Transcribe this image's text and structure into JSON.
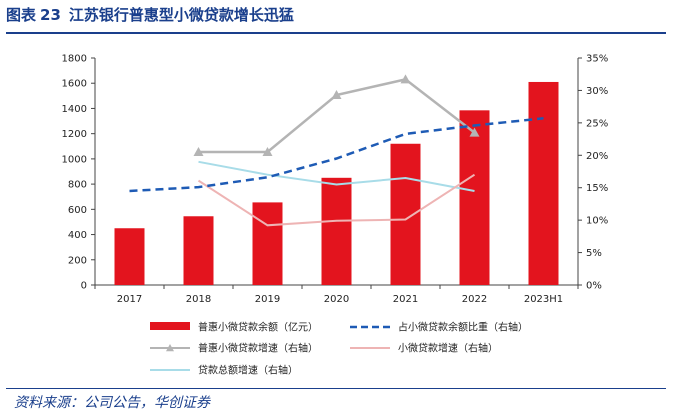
{
  "header": {
    "figure_label": "图表",
    "figure_number": "23",
    "title": "江苏银行普惠型小微贷款增长迅猛"
  },
  "footer": {
    "source": "资料来源：公司公告，华创证券"
  },
  "chart_data": {
    "type": "bar",
    "title": "江苏银行普惠型小微贷款增长迅猛",
    "categories": [
      "2017",
      "2018",
      "2019",
      "2020",
      "2021",
      "2022",
      "2023H1"
    ],
    "y_left": {
      "min": 0,
      "max": 1800,
      "step": 200,
      "ticks": [
        "0",
        "200",
        "400",
        "600",
        "800",
        "1000",
        "1200",
        "1400",
        "1600",
        "1800"
      ]
    },
    "y_right": {
      "min": 0,
      "max": 35,
      "step": 5,
      "ticks": [
        "0%",
        "5%",
        "10%",
        "15%",
        "20%",
        "25%",
        "30%",
        "35%"
      ]
    },
    "series": [
      {
        "name": "普惠小微贷款余额（亿元）",
        "type": "bar",
        "axis": "left",
        "color": "#e3141e",
        "values": [
          450,
          545,
          655,
          850,
          1120,
          1385,
          1610
        ]
      },
      {
        "name": "占小微贷款余额比重（右轴）",
        "type": "line",
        "style": "dashed",
        "axis": "right",
        "color": "#1e5bb5",
        "values": [
          14.5,
          15.1,
          16.6,
          19.5,
          23.3,
          24.6,
          25.7
        ]
      },
      {
        "name": "普惠小微贷款增速（右轴）",
        "type": "line",
        "style": "solid-marker",
        "axis": "right",
        "color": "#b4b4b4",
        "values": [
          null,
          20.5,
          20.5,
          29.3,
          31.7,
          23.5,
          null
        ]
      },
      {
        "name": "小微贷款增速（右轴）",
        "type": "line",
        "style": "solid",
        "axis": "right",
        "color": "#eeb4b4",
        "values": [
          null,
          16.1,
          9.2,
          9.9,
          10.1,
          17.0,
          null
        ]
      },
      {
        "name": "贷款总额增速（右轴）",
        "type": "line",
        "style": "solid",
        "axis": "right",
        "color": "#a8dce8",
        "values": [
          null,
          19.0,
          17.0,
          15.5,
          16.5,
          14.5,
          null
        ]
      }
    ],
    "legend_position": "bottom"
  }
}
